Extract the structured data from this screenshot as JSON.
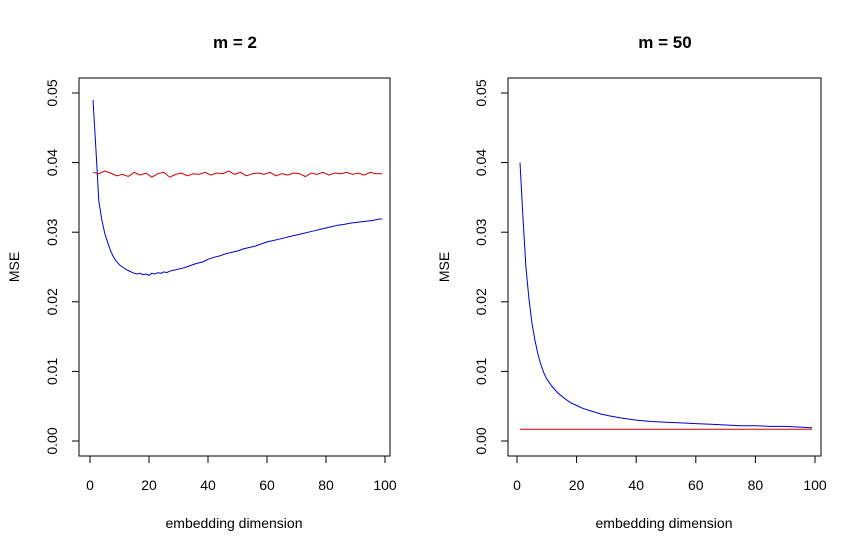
{
  "chart_data": [
    {
      "type": "line",
      "title": "m = 2",
      "xlabel": "embedding dimension",
      "ylabel": "MSE",
      "xlim": [
        0,
        100
      ],
      "ylim": [
        0,
        0.05
      ],
      "xticks": [
        0,
        20,
        40,
        60,
        80,
        100
      ],
      "yticks": [
        "0.00",
        "0.01",
        "0.02",
        "0.03",
        "0.04",
        "0.05"
      ],
      "grid": false,
      "series": [
        {
          "color": "#0000cc",
          "x": [
            1,
            2,
            3,
            4,
            5,
            6,
            7,
            8,
            9,
            10,
            11,
            12,
            13,
            14,
            15,
            16,
            17,
            18,
            19,
            20,
            21,
            22,
            23,
            24,
            25,
            26,
            27,
            28,
            29,
            30,
            32,
            34,
            36,
            38,
            40,
            42,
            44,
            46,
            48,
            50,
            52,
            54,
            56,
            58,
            60,
            62,
            64,
            66,
            68,
            70,
            72,
            74,
            76,
            78,
            80,
            82,
            84,
            86,
            88,
            90,
            92,
            94,
            96,
            98,
            99
          ],
          "y": [
            0.049,
            0.042,
            0.0345,
            0.0318,
            0.0298,
            0.0285,
            0.0273,
            0.0264,
            0.0258,
            0.0253,
            0.025,
            0.0247,
            0.0245,
            0.0243,
            0.0241,
            0.024,
            0.0241,
            0.0239,
            0.024,
            0.0238,
            0.0241,
            0.024,
            0.0242,
            0.0241,
            0.0243,
            0.0242,
            0.0244,
            0.0245,
            0.0246,
            0.0247,
            0.0249,
            0.0252,
            0.0255,
            0.0257,
            0.0261,
            0.0264,
            0.0266,
            0.0269,
            0.0271,
            0.0273,
            0.0276,
            0.0278,
            0.028,
            0.0283,
            0.0286,
            0.0288,
            0.029,
            0.0292,
            0.0294,
            0.0296,
            0.0298,
            0.03,
            0.0302,
            0.0304,
            0.0306,
            0.0308,
            0.031,
            0.0311,
            0.0313,
            0.0314,
            0.0315,
            0.0316,
            0.0317,
            0.0319,
            0.0319
          ]
        },
        {
          "color": "#cc0000",
          "x": [
            1,
            3,
            5,
            7,
            9,
            11,
            13,
            15,
            17,
            19,
            21,
            23,
            25,
            27,
            29,
            31,
            33,
            35,
            37,
            39,
            41,
            43,
            45,
            47,
            49,
            51,
            53,
            55,
            57,
            59,
            61,
            63,
            65,
            67,
            69,
            71,
            73,
            75,
            77,
            79,
            81,
            83,
            85,
            87,
            89,
            91,
            93,
            95,
            97,
            99
          ],
          "y": [
            0.0386,
            0.0384,
            0.0388,
            0.0385,
            0.0381,
            0.0383,
            0.038,
            0.0386,
            0.0382,
            0.0385,
            0.0379,
            0.0384,
            0.0386,
            0.0379,
            0.0383,
            0.0385,
            0.0381,
            0.0384,
            0.0383,
            0.0386,
            0.0382,
            0.0385,
            0.0384,
            0.0388,
            0.0383,
            0.0386,
            0.0381,
            0.0384,
            0.0385,
            0.0383,
            0.0386,
            0.0381,
            0.0384,
            0.0382,
            0.0385,
            0.0384,
            0.038,
            0.0385,
            0.0383,
            0.0386,
            0.0382,
            0.0385,
            0.0384,
            0.0386,
            0.0383,
            0.0385,
            0.0382,
            0.0386,
            0.0384,
            0.0384
          ]
        }
      ]
    },
    {
      "type": "line",
      "title": "m = 50",
      "xlabel": "embedding dimension",
      "ylabel": "MSE",
      "xlim": [
        0,
        100
      ],
      "ylim": [
        0,
        0.05
      ],
      "xticks": [
        0,
        20,
        40,
        60,
        80,
        100
      ],
      "yticks": [
        "0.00",
        "0.01",
        "0.02",
        "0.03",
        "0.04",
        "0.05"
      ],
      "grid": false,
      "series": [
        {
          "color": "#0000cc",
          "x": [
            1,
            2,
            3,
            4,
            5,
            6,
            7,
            8,
            9,
            10,
            12,
            14,
            16,
            18,
            20,
            22,
            25,
            28,
            31,
            35,
            40,
            45,
            50,
            55,
            60,
            65,
            70,
            75,
            80,
            85,
            90,
            95,
            99
          ],
          "y": [
            0.04,
            0.032,
            0.025,
            0.0205,
            0.017,
            0.0145,
            0.0125,
            0.011,
            0.0098,
            0.0089,
            0.0077,
            0.0068,
            0.0061,
            0.0055,
            0.0051,
            0.0047,
            0.0043,
            0.0039,
            0.0036,
            0.0033,
            0.003,
            0.0028,
            0.0027,
            0.0026,
            0.0025,
            0.0024,
            0.0023,
            0.0022,
            0.0022,
            0.0021,
            0.0021,
            0.002,
            0.0019
          ]
        },
        {
          "color": "#cc0000",
          "x": [
            1,
            99
          ],
          "y": [
            0.0017,
            0.0017
          ]
        }
      ]
    }
  ]
}
